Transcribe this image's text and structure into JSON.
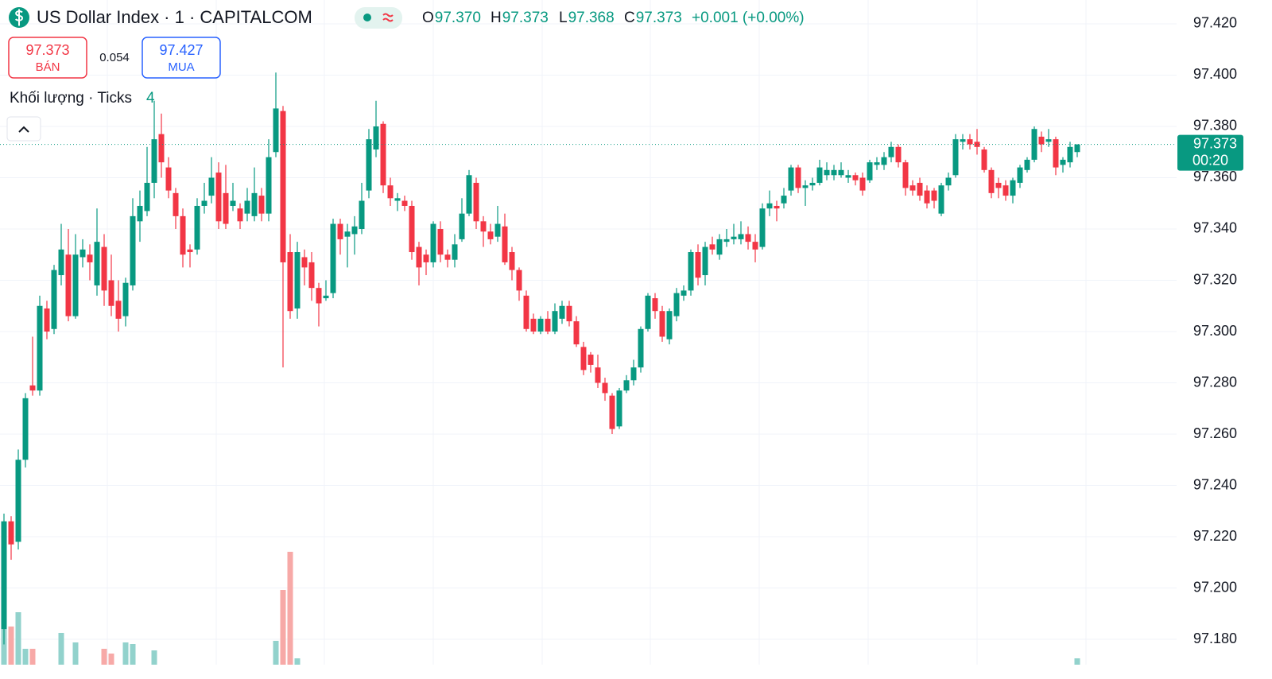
{
  "chart_data": {
    "type": "candlestick",
    "title": "US Dollar Index · 1 · CAPITALCOM",
    "ohlc": [
      {
        "key": "O",
        "value": "97.370"
      },
      {
        "key": "H",
        "value": "97.373"
      },
      {
        "key": "L",
        "value": "97.368"
      },
      {
        "key": "C",
        "value": "97.373"
      }
    ],
    "change": "+0.001 (+0.00%)",
    "bid": {
      "value": 97.373,
      "label": "BÁN"
    },
    "spread": 0.054,
    "ask": {
      "value": 97.427,
      "label": "MUA"
    },
    "volume_label": "Khối lượng · Ticks",
    "countdown": "00:20",
    "up_color": "#089981",
    "down_color": "#f23645",
    "volume_up_color": "#92d2cc",
    "volume_down_color": "#f7a9a7",
    "grid": true,
    "ylim": [
      97.1645,
      97.4293
    ],
    "yticks": [
      {
        "value": 97.18,
        "label": "97.180"
      },
      {
        "value": 97.2,
        "label": "97.200"
      },
      {
        "value": 97.22,
        "label": "97.220"
      },
      {
        "value": 97.24,
        "label": "97.240"
      },
      {
        "value": 97.26,
        "label": "97.260"
      },
      {
        "value": 97.28,
        "label": "97.280"
      },
      {
        "value": 97.3,
        "label": "97.300"
      },
      {
        "value": 97.32,
        "label": "97.320"
      },
      {
        "value": 97.34,
        "label": "97.340"
      },
      {
        "value": 97.36,
        "label": "97.360"
      },
      {
        "value": 97.38,
        "label": "97.380"
      },
      {
        "value": 97.4,
        "label": "97.400"
      },
      {
        "value": 97.42,
        "label": "97.420"
      }
    ],
    "candles": [
      [
        97.184,
        97.229,
        97.178,
        97.226
      ],
      [
        97.226,
        97.228,
        97.211,
        97.217
      ],
      [
        97.218,
        97.254,
        97.215,
        97.25
      ],
      [
        97.25,
        97.276,
        97.247,
        97.274
      ],
      [
        97.279,
        97.298,
        97.275,
        97.277
      ],
      [
        97.277,
        97.314,
        97.275,
        97.31
      ],
      [
        97.309,
        97.312,
        97.297,
        97.3
      ],
      [
        97.301,
        97.326,
        97.299,
        97.324
      ],
      [
        97.322,
        97.342,
        97.318,
        97.332
      ],
      [
        97.33,
        97.34,
        97.304,
        97.306
      ],
      [
        97.306,
        97.338,
        97.305,
        97.33
      ],
      [
        97.329,
        97.336,
        97.325,
        97.332
      ],
      [
        97.33,
        97.334,
        97.32,
        97.327
      ],
      [
        97.318,
        97.348,
        97.314,
        97.335
      ],
      [
        97.333,
        97.338,
        97.31,
        97.316
      ],
      [
        97.32,
        97.33,
        97.306,
        97.31
      ],
      [
        97.312,
        97.32,
        97.3,
        97.305
      ],
      [
        97.306,
        97.321,
        97.302,
        97.319
      ],
      [
        97.318,
        97.352,
        97.316,
        97.345
      ],
      [
        97.343,
        97.355,
        97.335,
        97.349
      ],
      [
        97.347,
        97.372,
        97.345,
        97.358
      ],
      [
        97.358,
        97.39,
        97.352,
        97.375
      ],
      [
        97.377,
        97.385,
        97.36,
        97.366
      ],
      [
        97.364,
        97.368,
        97.352,
        97.355
      ],
      [
        97.354,
        97.356,
        97.34,
        97.345
      ],
      [
        97.345,
        97.348,
        97.325,
        97.33
      ],
      [
        97.332,
        97.334,
        97.325,
        97.331
      ],
      [
        97.332,
        97.352,
        97.33,
        97.349
      ],
      [
        97.349,
        97.358,
        97.346,
        97.351
      ],
      [
        97.353,
        97.368,
        97.35,
        97.36
      ],
      [
        97.362,
        97.366,
        97.34,
        97.343
      ],
      [
        97.354,
        97.365,
        97.34,
        97.342
      ],
      [
        97.349,
        97.358,
        97.347,
        97.351
      ],
      [
        97.348,
        97.35,
        97.34,
        97.343
      ],
      [
        97.346,
        97.356,
        97.343,
        97.351
      ],
      [
        97.345,
        97.364,
        97.343,
        97.354
      ],
      [
        97.353,
        97.356,
        97.343,
        97.346
      ],
      [
        97.346,
        97.375,
        97.343,
        97.368
      ],
      [
        97.37,
        97.401,
        97.368,
        97.387
      ],
      [
        97.386,
        97.388,
        97.286,
        97.327
      ],
      [
        97.331,
        97.338,
        97.305,
        97.308
      ],
      [
        97.309,
        97.335,
        97.305,
        97.331
      ],
      [
        97.329,
        97.332,
        97.318,
        97.325
      ],
      [
        97.327,
        97.331,
        97.312,
        97.317
      ],
      [
        97.317,
        97.319,
        97.302,
        97.311
      ],
      [
        97.313,
        97.32,
        97.312,
        97.314
      ],
      [
        97.315,
        97.344,
        97.313,
        97.342
      ],
      [
        97.342,
        97.344,
        97.33,
        97.336
      ],
      [
        97.337,
        97.342,
        97.325,
        97.339
      ],
      [
        97.338,
        97.345,
        97.33,
        97.341
      ],
      [
        97.34,
        97.358,
        97.338,
        97.351
      ],
      [
        97.355,
        97.379,
        97.352,
        97.375
      ],
      [
        97.371,
        97.39,
        97.368,
        97.38
      ],
      [
        97.381,
        97.382,
        97.354,
        97.357
      ],
      [
        97.357,
        97.36,
        97.349,
        97.352
      ],
      [
        97.351,
        97.354,
        97.347,
        97.352
      ],
      [
        97.351,
        97.353,
        97.347,
        97.349
      ],
      [
        97.349,
        97.351,
        97.328,
        97.331
      ],
      [
        97.333,
        97.335,
        97.318,
        97.325
      ],
      [
        97.33,
        97.332,
        97.322,
        97.327
      ],
      [
        97.327,
        97.343,
        97.325,
        97.342
      ],
      [
        97.34,
        97.343,
        97.327,
        97.33
      ],
      [
        97.33,
        97.332,
        97.325,
        97.328
      ],
      [
        97.328,
        97.338,
        97.325,
        97.334
      ],
      [
        97.336,
        97.352,
        97.335,
        97.346
      ],
      [
        97.346,
        97.363,
        97.345,
        97.361
      ],
      [
        97.358,
        97.36,
        97.34,
        97.343
      ],
      [
        97.343,
        97.345,
        97.333,
        97.339
      ],
      [
        97.339,
        97.342,
        97.334,
        97.336
      ],
      [
        97.337,
        97.349,
        97.335,
        97.342
      ],
      [
        97.341,
        97.346,
        97.326,
        97.327
      ],
      [
        97.331,
        97.333,
        97.32,
        97.324
      ],
      [
        97.324,
        97.325,
        97.312,
        97.316
      ],
      [
        97.314,
        97.316,
        97.3,
        97.301
      ],
      [
        97.305,
        97.307,
        97.299,
        97.3
      ],
      [
        97.3,
        97.306,
        97.299,
        97.305
      ],
      [
        97.305,
        97.308,
        97.299,
        97.3
      ],
      [
        97.3,
        97.311,
        97.299,
        97.308
      ],
      [
        97.305,
        97.312,
        97.303,
        97.31
      ],
      [
        97.31,
        97.312,
        97.302,
        97.304
      ],
      [
        97.304,
        97.306,
        97.294,
        97.295
      ],
      [
        97.294,
        97.296,
        97.283,
        97.285
      ],
      [
        97.291,
        97.292,
        97.284,
        97.287
      ],
      [
        97.286,
        97.291,
        97.278,
        97.28
      ],
      [
        97.28,
        97.282,
        97.273,
        97.276
      ],
      [
        97.275,
        97.276,
        97.26,
        97.262
      ],
      [
        97.263,
        97.278,
        97.262,
        97.277
      ],
      [
        97.277,
        97.283,
        97.276,
        97.281
      ],
      [
        97.281,
        97.289,
        97.279,
        97.286
      ],
      [
        97.286,
        97.302,
        97.284,
        97.301
      ],
      [
        97.301,
        97.315,
        97.3,
        97.314
      ],
      [
        97.313,
        97.315,
        97.305,
        97.308
      ],
      [
        97.308,
        97.31,
        97.296,
        97.298
      ],
      [
        97.297,
        97.309,
        97.295,
        97.308
      ],
      [
        97.306,
        97.317,
        97.304,
        97.315
      ],
      [
        97.314,
        97.318,
        97.312,
        97.316
      ],
      [
        97.316,
        97.332,
        97.314,
        97.331
      ],
      [
        97.331,
        97.334,
        97.318,
        97.321
      ],
      [
        97.322,
        97.335,
        97.318,
        97.333
      ],
      [
        97.334,
        97.337,
        97.33,
        97.332
      ],
      [
        97.33,
        97.338,
        97.328,
        97.336
      ],
      [
        97.335,
        97.34,
        97.333,
        97.336
      ],
      [
        97.336,
        97.342,
        97.334,
        97.337
      ],
      [
        97.336,
        97.343,
        97.334,
        97.338
      ],
      [
        97.338,
        97.341,
        97.332,
        97.335
      ],
      [
        97.335,
        97.338,
        97.327,
        97.332
      ],
      [
        97.333,
        97.35,
        97.332,
        97.348
      ],
      [
        97.348,
        97.355,
        97.345,
        97.35
      ],
      [
        97.349,
        97.351,
        97.343,
        97.348
      ],
      [
        97.35,
        97.356,
        97.348,
        97.353
      ],
      [
        97.355,
        97.365,
        97.353,
        97.364
      ],
      [
        97.364,
        97.365,
        97.354,
        97.356
      ],
      [
        97.356,
        97.359,
        97.349,
        97.357
      ],
      [
        97.357,
        97.36,
        97.355,
        97.358
      ],
      [
        97.358,
        97.367,
        97.357,
        97.364
      ],
      [
        97.361,
        97.366,
        97.359,
        97.363
      ],
      [
        97.361,
        97.365,
        97.359,
        97.363
      ],
      [
        97.361,
        97.366,
        97.36,
        97.363
      ],
      [
        97.36,
        97.363,
        97.358,
        97.361
      ],
      [
        97.361,
        97.362,
        97.357,
        97.359
      ],
      [
        97.36,
        97.362,
        97.353,
        97.355
      ],
      [
        97.359,
        97.367,
        97.358,
        97.366
      ],
      [
        97.365,
        97.368,
        97.363,
        97.366
      ],
      [
        97.365,
        97.37,
        97.363,
        97.368
      ],
      [
        97.368,
        97.374,
        97.366,
        97.372
      ],
      [
        97.372,
        97.373,
        97.364,
        97.366
      ],
      [
        97.366,
        97.367,
        97.353,
        97.356
      ],
      [
        97.357,
        97.359,
        97.353,
        97.355
      ],
      [
        97.358,
        97.36,
        97.351,
        97.353
      ],
      [
        97.355,
        97.357,
        97.348,
        97.35
      ],
      [
        97.355,
        97.356,
        97.348,
        97.351
      ],
      [
        97.346,
        97.358,
        97.345,
        97.357
      ],
      [
        97.357,
        97.362,
        97.355,
        97.36
      ],
      [
        97.361,
        97.377,
        97.36,
        97.375
      ],
      [
        97.374,
        97.377,
        97.371,
        97.375
      ],
      [
        97.375,
        97.377,
        97.371,
        97.373
      ],
      [
        97.374,
        97.379,
        97.369,
        97.372
      ],
      [
        97.371,
        97.372,
        97.362,
        97.363
      ],
      [
        97.363,
        97.364,
        97.352,
        97.354
      ],
      [
        97.358,
        97.36,
        97.352,
        97.356
      ],
      [
        97.357,
        97.359,
        97.351,
        97.353
      ],
      [
        97.353,
        97.36,
        97.35,
        97.359
      ],
      [
        97.358,
        97.365,
        97.356,
        97.364
      ],
      [
        97.363,
        97.368,
        97.362,
        97.367
      ],
      [
        97.367,
        97.38,
        97.366,
        97.379
      ],
      [
        97.376,
        97.378,
        97.37,
        97.373
      ],
      [
        97.374,
        97.379,
        97.372,
        97.375
      ],
      [
        97.375,
        97.376,
        97.361,
        97.364
      ],
      [
        97.365,
        97.368,
        97.362,
        97.367
      ],
      [
        97.366,
        97.374,
        97.364,
        97.372
      ],
      [
        97.37,
        97.373,
        97.368,
        97.373
      ]
    ],
    "volume_ylim": [
      0,
      100
    ],
    "volume": [
      23,
      24,
      33,
      10,
      10,
      null,
      null,
      null,
      20,
      null,
      14,
      null,
      null,
      null,
      10,
      7,
      null,
      14,
      13,
      null,
      null,
      9,
      null,
      null,
      null,
      null,
      null,
      null,
      null,
      null,
      null,
      null,
      null,
      null,
      null,
      null,
      null,
      null,
      15,
      47,
      71,
      4,
      null,
      null,
      null,
      null,
      null,
      null,
      null,
      null,
      null,
      null,
      null,
      null,
      null,
      null,
      null,
      null,
      null,
      null,
      null,
      null,
      null,
      null,
      null,
      null,
      null,
      null,
      null,
      null,
      null,
      null,
      null,
      null,
      null,
      null,
      null,
      null,
      null,
      null,
      null,
      null,
      null,
      null,
      null,
      null,
      null,
      null,
      null,
      null,
      null,
      null,
      null,
      null,
      null,
      null,
      null,
      null,
      null,
      null,
      null,
      null,
      null,
      null,
      null,
      null,
      null,
      null,
      null,
      null,
      null,
      null,
      null,
      null,
      null,
      null,
      null,
      null,
      null,
      null,
      null,
      null,
      null,
      null,
      null,
      null,
      null,
      null,
      null,
      null,
      null,
      null,
      null,
      null,
      null,
      null,
      null,
      null,
      null,
      null,
      null,
      null,
      null,
      null,
      null,
      null,
      null,
      null,
      null,
      null,
      4
    ]
  }
}
